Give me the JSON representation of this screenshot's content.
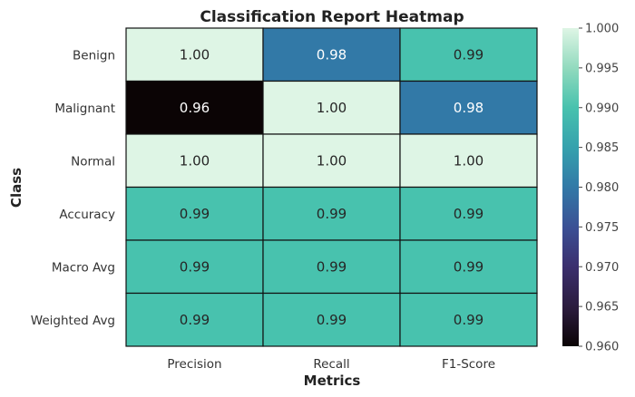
{
  "chart_data": {
    "type": "heatmap",
    "title": "Classification Report Heatmap",
    "xlabel": "Metrics",
    "ylabel": "Class",
    "columns": [
      "Precision",
      "Recall",
      "F1-Score"
    ],
    "rows": [
      "Benign",
      "Malignant",
      "Normal",
      "Accuracy",
      "Macro Avg",
      "Weighted Avg"
    ],
    "values": [
      [
        1.0,
        0.98,
        0.99
      ],
      [
        0.96,
        1.0,
        0.98
      ],
      [
        1.0,
        1.0,
        1.0
      ],
      [
        0.99,
        0.99,
        0.99
      ],
      [
        0.99,
        0.99,
        0.99
      ],
      [
        0.99,
        0.99,
        0.99
      ]
    ],
    "value_labels": [
      [
        "1.00",
        "0.98",
        "0.99"
      ],
      [
        "0.96",
        "1.00",
        "0.98"
      ],
      [
        "1.00",
        "1.00",
        "1.00"
      ],
      [
        "0.99",
        "0.99",
        "0.99"
      ],
      [
        "0.99",
        "0.99",
        "0.99"
      ],
      [
        "0.99",
        "0.99",
        "0.99"
      ]
    ],
    "colorbar": {
      "range": [
        0.96,
        1.0
      ],
      "ticks": [
        "0.960",
        "0.965",
        "0.970",
        "0.975",
        "0.980",
        "0.985",
        "0.990",
        "0.995",
        "1.000"
      ],
      "colormap": "mako",
      "colors": {
        "0.96": "#0b0405",
        "0.98": "#3279a7",
        "0.99": "#48c2ae",
        "1.00": "#def5e5"
      }
    },
    "grid_lines": true,
    "legend": "colorbar-right"
  }
}
